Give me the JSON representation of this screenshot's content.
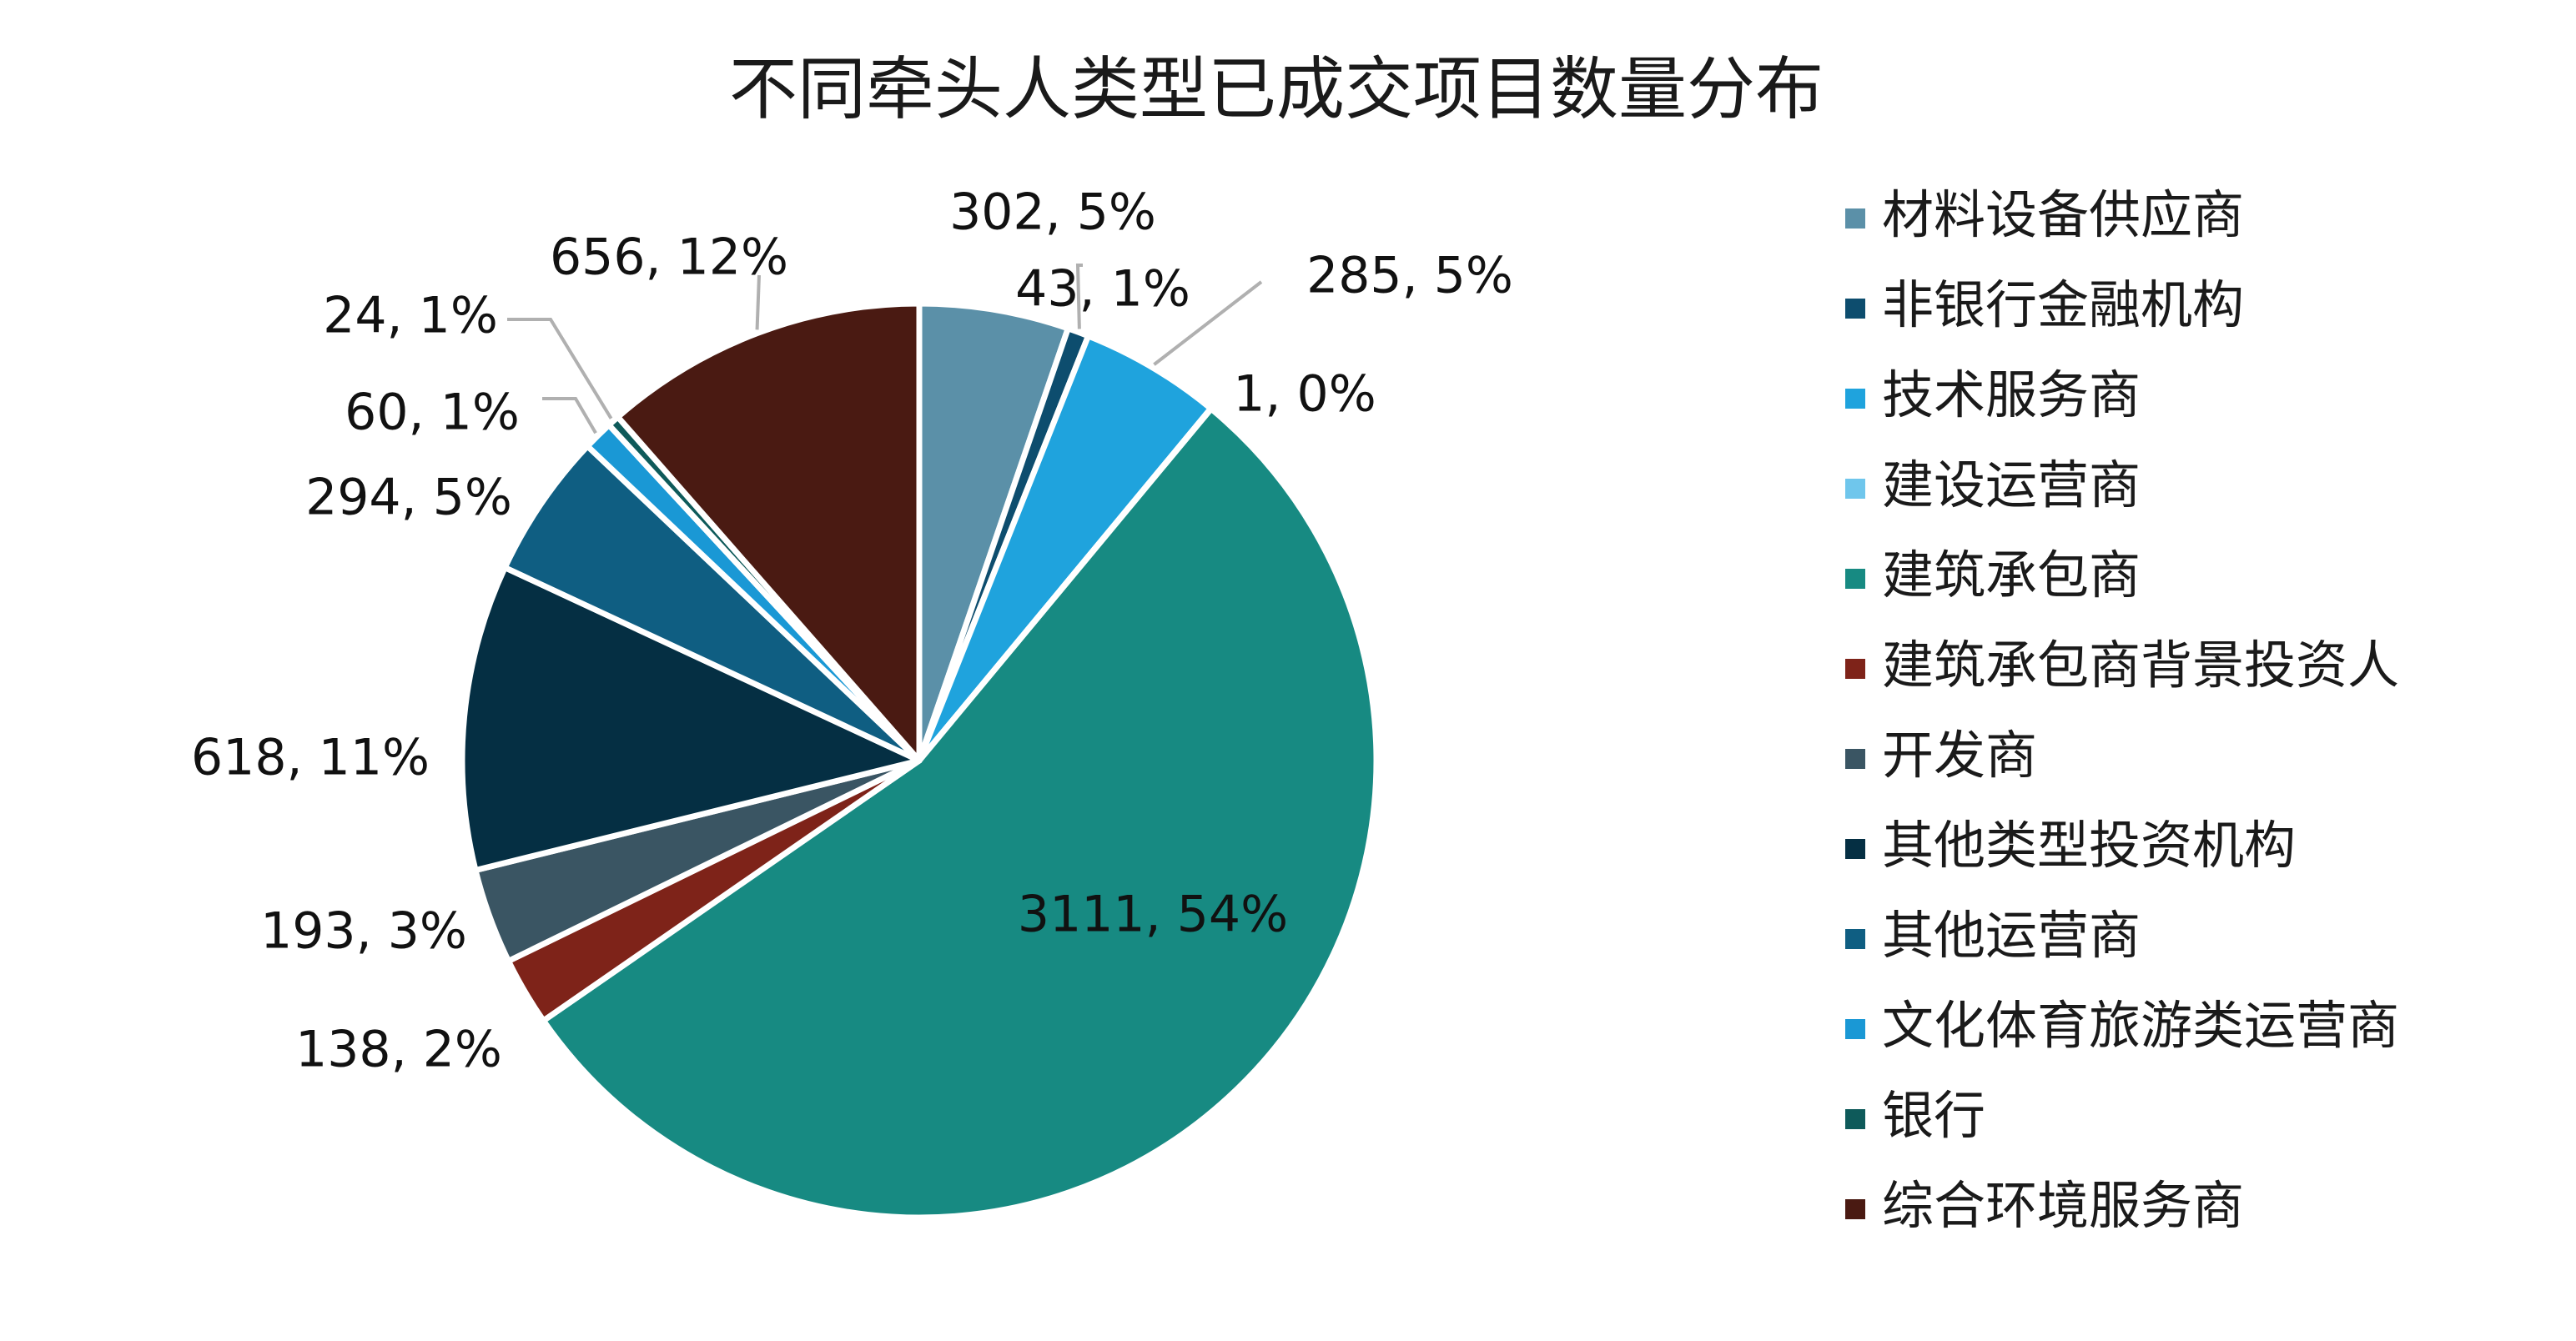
{
  "chart_data": {
    "type": "pie",
    "title": "不同牵头人类型已成交项目数量分布",
    "legend_position": "right",
    "slices": [
      {
        "name": "材料设备供应商",
        "value": 302,
        "percent": "5%",
        "label": "302, 5%",
        "color": "#5b90a8"
      },
      {
        "name": "非银行金融机构",
        "value": 43,
        "percent": "1%",
        "label": "43, 1%",
        "color": "#0d4d6e"
      },
      {
        "name": "技术服务商",
        "value": 285,
        "percent": "5%",
        "label": "285, 5%",
        "color": "#1fa3dd"
      },
      {
        "name": "建设运营商",
        "value": 1,
        "percent": "0%",
        "label": "1, 0%",
        "color": "#6fc6ec"
      },
      {
        "name": "建筑承包商",
        "value": 3111,
        "percent": "54%",
        "label": "3111, 54%",
        "color": "#178a82"
      },
      {
        "name": "建筑承包商背景投资人",
        "value": 138,
        "percent": "2%",
        "label": "138, 2%",
        "color": "#7e2319"
      },
      {
        "name": "开发商",
        "value": 193,
        "percent": "3%",
        "label": "193, 3%",
        "color": "#3a5563"
      },
      {
        "name": "其他类型投资机构",
        "value": 618,
        "percent": "11%",
        "label": "618, 11%",
        "color": "#052f43"
      },
      {
        "name": "其他运营商",
        "value": 294,
        "percent": "5%",
        "label": "294, 5%",
        "color": "#0f5e82"
      },
      {
        "name": "文化体育旅游类运营商",
        "value": 60,
        "percent": "1%",
        "label": "60, 1%",
        "color": "#1a98d5"
      },
      {
        "name": "银行",
        "value": 24,
        "percent": "1%",
        "label": "24, 1%",
        "color": "#0e5a5a"
      },
      {
        "name": "综合环境服务商",
        "value": 656,
        "percent": "12%",
        "label": "656, 12%",
        "color": "#4a1a12"
      }
    ]
  }
}
